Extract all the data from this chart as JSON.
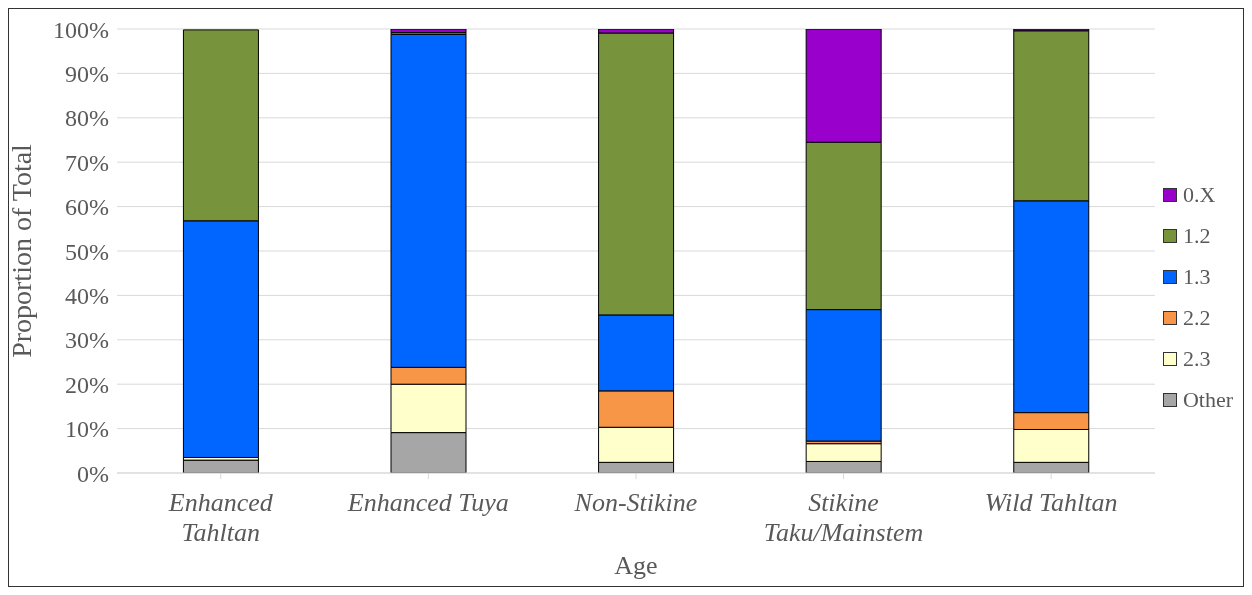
{
  "chart_data": {
    "type": "bar",
    "stacked": true,
    "xlabel": "Age",
    "ylabel": "Proportion of Total",
    "categories": [
      "Enhanced Tahltan",
      "Enhanced Tuya",
      "Non-Stikine",
      "Stikine Taku/Mainstem",
      "Wild Tahltan"
    ],
    "series": [
      {
        "name": "Other",
        "color": "#a6a6a6",
        "values": [
          2.9,
          9.1,
          2.4,
          2.6,
          2.4
        ]
      },
      {
        "name": "2.3",
        "color": "#ffffcc",
        "values": [
          0.6,
          10.9,
          7.9,
          4.0,
          7.4
        ]
      },
      {
        "name": "2.2",
        "color": "#f79646",
        "values": [
          0,
          3.8,
          8.2,
          0.6,
          3.8
        ]
      },
      {
        "name": "1.3",
        "color": "#0066ff",
        "values": [
          53.3,
          75.0,
          17.1,
          29.6,
          47.7
        ]
      },
      {
        "name": "1.2",
        "color": "#77933c",
        "values": [
          43.0,
          0.4,
          63.5,
          37.7,
          38.3
        ]
      },
      {
        "name": "0.X",
        "color": "#9900cc",
        "values": [
          null,
          0.8,
          0.9,
          25.5,
          0.4
        ]
      }
    ],
    "ylim": [
      0,
      100
    ],
    "yticks": [
      {
        "value": 0,
        "label": "0%"
      },
      {
        "value": 10,
        "label": "10%"
      },
      {
        "value": 20,
        "label": "20%"
      },
      {
        "value": 30,
        "label": "30%"
      },
      {
        "value": 40,
        "label": "40%"
      },
      {
        "value": 50,
        "label": "50%"
      },
      {
        "value": 60,
        "label": "60%"
      },
      {
        "value": 70,
        "label": "70%"
      },
      {
        "value": 80,
        "label": "80%"
      },
      {
        "value": 90,
        "label": "90%"
      },
      {
        "value": 100,
        "label": "100%"
      }
    ],
    "grid": "y",
    "legend": "right"
  }
}
